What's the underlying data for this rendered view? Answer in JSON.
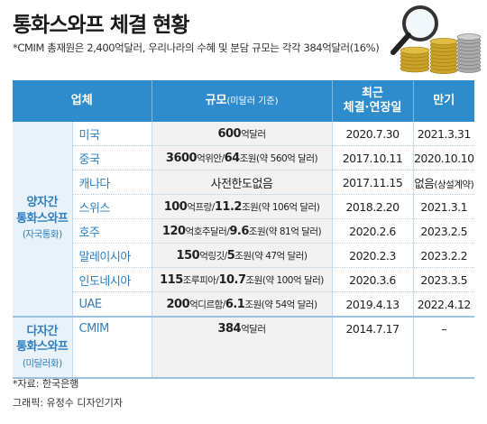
{
  "title": "통화스와프 체결 현황",
  "note": "*CMIM 총재원은 2,400억달러, 우리나라의 수혜 및 분담 규모는 각각 384억달러(16%)",
  "headers": {
    "org": "업체",
    "scale": "규모",
    "scale_unit": "(미달러 기준)",
    "recent_line1": "최근",
    "recent_line2": "체결·연장일",
    "maturity": "만기"
  },
  "groups": {
    "bilateral_line1": "양자간",
    "bilateral_line2": "통화스와프",
    "bilateral_line3": "(자국통화)",
    "multilateral_line1": "다자간",
    "multilateral_line2": "통화스와프",
    "multilateral_line3": "(미달러화)"
  },
  "rows": [
    {
      "country": "미국",
      "scale_main": "600",
      "scale_unit": "억달러",
      "scale_main2": "",
      "scale_unit2": "",
      "scale_paren": "",
      "date": "2020.7.30",
      "expiry": "2021.3.31",
      "expiry_note": ""
    },
    {
      "country": "중국",
      "scale_main": "3600",
      "scale_unit": "억위안/",
      "scale_main2": "64",
      "scale_unit2": "조원",
      "scale_paren": "(약 560억 달러)",
      "date": "2017.10.11",
      "expiry": "2020.10.10",
      "expiry_note": ""
    },
    {
      "country": "캐나다",
      "scale_main": "",
      "scale_unit": "사전한도없음",
      "scale_main2": "",
      "scale_unit2": "",
      "scale_paren": "",
      "date": "2017.11.15",
      "expiry": "없음",
      "expiry_note": "(상설계약)"
    },
    {
      "country": "스위스",
      "scale_main": "100",
      "scale_unit": "억프랑/",
      "scale_main2": "11.2",
      "scale_unit2": "조원",
      "scale_paren": "(약 106억 달러)",
      "date": "2018.2.20",
      "expiry": "2021.3.1",
      "expiry_note": ""
    },
    {
      "country": "호주",
      "scale_main": "120",
      "scale_unit": "억호주달러/",
      "scale_main2": "9.6",
      "scale_unit2": "조원",
      "scale_paren": "(약 81억 달러)",
      "date": "2020.2.6",
      "expiry": "2023.2.5",
      "expiry_note": ""
    },
    {
      "country": "말레이시아",
      "scale_main": "150",
      "scale_unit": "억링깃/",
      "scale_main2": "5",
      "scale_unit2": "조원",
      "scale_paren": "(약 47억 달러)",
      "date": "2020.2.3",
      "expiry": "2023.2.2",
      "expiry_note": ""
    },
    {
      "country": "인도네시아",
      "scale_main": "115",
      "scale_unit": "조루피아/",
      "scale_main2": "10.7",
      "scale_unit2": "조원",
      "scale_paren": "(약 100억 달러)",
      "date": "2020.3.6",
      "expiry": "2023.3.5",
      "expiry_note": ""
    },
    {
      "country": "UAE",
      "scale_main": "200",
      "scale_unit": "억디르함/",
      "scale_main2": "6.1",
      "scale_unit2": "조원",
      "scale_paren": "(약 54억 달러)",
      "date": "2019.4.13",
      "expiry": "2022.4.12",
      "expiry_note": ""
    }
  ],
  "cmim": {
    "country": "CMIM",
    "scale_main": "384",
    "scale_unit": "억달러",
    "date": "2014.7.17",
    "expiry": "–"
  },
  "source": "*자료: 한국은행",
  "credit": "그래픽: 유정수 디자인기자",
  "colors": {
    "header_bg": "#2e8ccc",
    "accent_text": "#2e7fc1",
    "group_bg": "#e9f2f9",
    "scale_bg": "#f2f2f2"
  },
  "icons": {
    "illustration": "coins-and-magnifier-icon"
  }
}
